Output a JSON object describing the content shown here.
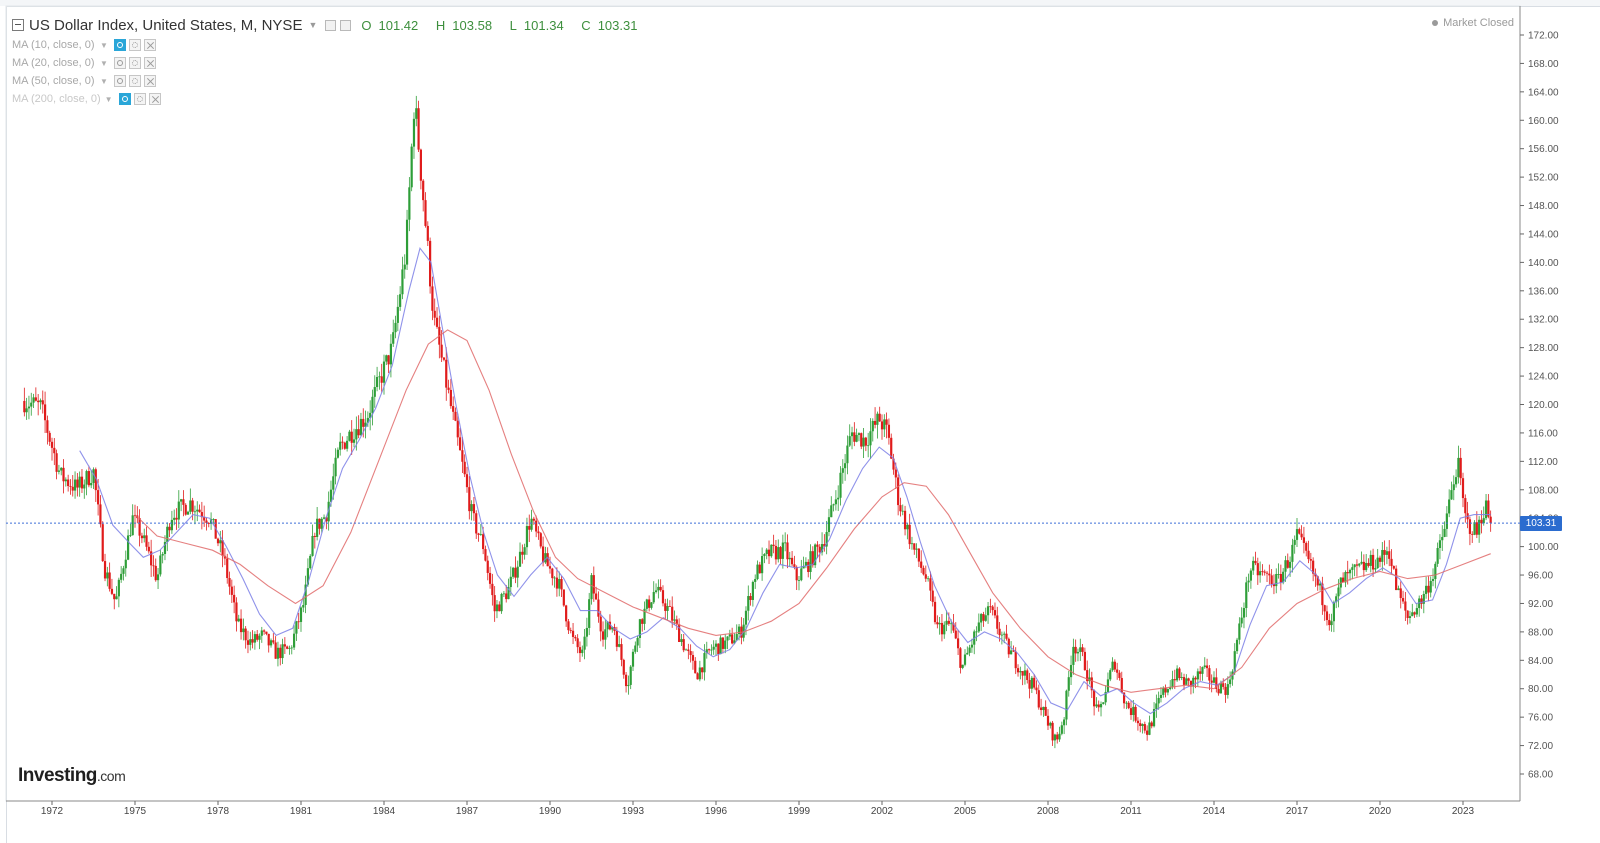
{
  "header": {
    "title": "US Dollar Index, United States, M, NYSE",
    "ohlc": {
      "open_label": "O",
      "open": "101.42",
      "high_label": "H",
      "high": "103.58",
      "low_label": "L",
      "low": "101.34",
      "close_label": "C",
      "close": "103.31"
    },
    "status": "Market Closed"
  },
  "indicators": [
    {
      "label": "MA (10, close, 0)",
      "visible": true
    },
    {
      "label": "MA (20, close, 0)",
      "visible": false
    },
    {
      "label": "MA (50, close, 0)",
      "visible": false
    },
    {
      "label": "MA (200, close, 0)",
      "visible": true
    }
  ],
  "brand": {
    "name": "Investing",
    "suffix": ".com"
  },
  "last_price": "103.31",
  "colors": {
    "up": "#2e9e38",
    "down": "#e01b1b",
    "ma_fast": "#7b7fe6",
    "ma_slow": "#e06a6a",
    "price_line": "#3f6fd8",
    "price_tag": "#2b6ccf"
  },
  "chart_data": {
    "type": "candlestick",
    "interval": "M",
    "y_ticks": [
      "172.00",
      "168.00",
      "164.00",
      "160.00",
      "156.00",
      "152.00",
      "148.00",
      "144.00",
      "140.00",
      "136.00",
      "132.00",
      "128.00",
      "124.00",
      "120.00",
      "116.00",
      "112.00",
      "108.00",
      "104.00",
      "100.00",
      "96.00",
      "92.00",
      "88.00",
      "84.00",
      "80.00",
      "76.00",
      "72.00",
      "68.00"
    ],
    "x_ticks": [
      "1972",
      "1975",
      "1978",
      "1981",
      "1984",
      "1987",
      "1990",
      "1993",
      "1996",
      "1999",
      "2002",
      "2005",
      "2008",
      "2011",
      "2014",
      "2017",
      "2020",
      "2023"
    ],
    "ylim": [
      66,
      174
    ],
    "xlim": [
      1970.6,
      2025.6
    ],
    "last_price": 103.31,
    "price_path": [
      [
        1971.0,
        120.5
      ],
      [
        1971.6,
        119.6
      ],
      [
        1972.3,
        110.0
      ],
      [
        1972.9,
        108.2
      ],
      [
        1973.5,
        110.5
      ],
      [
        1973.9,
        97.0
      ],
      [
        1974.3,
        92.0
      ],
      [
        1974.9,
        104.0
      ],
      [
        1975.2,
        102.0
      ],
      [
        1975.8,
        95.5
      ],
      [
        1976.3,
        104.5
      ],
      [
        1977.0,
        106.2
      ],
      [
        1977.7,
        104.0
      ],
      [
        1978.2,
        98.5
      ],
      [
        1978.7,
        89.0
      ],
      [
        1979.2,
        86.5
      ],
      [
        1979.6,
        87.5
      ],
      [
        1980.1,
        85.0
      ],
      [
        1980.6,
        85.5
      ],
      [
        1981.1,
        92.0
      ],
      [
        1981.5,
        102.5
      ],
      [
        1981.9,
        104.5
      ],
      [
        1982.4,
        114.0
      ],
      [
        1982.8,
        116.0
      ],
      [
        1983.4,
        118.5
      ],
      [
        1983.9,
        124.0
      ],
      [
        1984.3,
        128.0
      ],
      [
        1984.8,
        142.0
      ],
      [
        1985.1,
        163.0
      ],
      [
        1985.4,
        150.0
      ],
      [
        1985.8,
        132.0
      ],
      [
        1986.3,
        122.0
      ],
      [
        1986.8,
        112.0
      ],
      [
        1987.2,
        104.0
      ],
      [
        1987.6,
        100.0
      ],
      [
        1988.0,
        91.0
      ],
      [
        1988.5,
        94.0
      ],
      [
        1988.9,
        98.5
      ],
      [
        1989.3,
        104.0
      ],
      [
        1989.8,
        98.0
      ],
      [
        1990.3,
        95.0
      ],
      [
        1990.8,
        87.0
      ],
      [
        1991.2,
        84.5
      ],
      [
        1991.5,
        95.0
      ],
      [
        1991.9,
        88.0
      ],
      [
        1992.3,
        89.0
      ],
      [
        1992.8,
        80.5
      ],
      [
        1993.2,
        89.0
      ],
      [
        1993.8,
        94.0
      ],
      [
        1994.3,
        91.0
      ],
      [
        1994.8,
        86.5
      ],
      [
        1995.3,
        82.0
      ],
      [
        1995.8,
        85.5
      ],
      [
        1996.4,
        86.5
      ],
      [
        1996.9,
        88.0
      ],
      [
        1997.4,
        96.0
      ],
      [
        1997.9,
        99.0
      ],
      [
        1998.5,
        99.5
      ],
      [
        1998.9,
        95.5
      ],
      [
        1999.4,
        98.0
      ],
      [
        1999.9,
        101.0
      ],
      [
        2000.4,
        108.0
      ],
      [
        2000.9,
        116.0
      ],
      [
        2001.4,
        115.0
      ],
      [
        2001.9,
        118.0
      ],
      [
        2002.2,
        116.0
      ],
      [
        2002.6,
        106.5
      ],
      [
        2003.1,
        100.0
      ],
      [
        2003.6,
        95.5
      ],
      [
        2004.0,
        88.5
      ],
      [
        2004.5,
        89.0
      ],
      [
        2004.9,
        83.0
      ],
      [
        2005.5,
        89.0
      ],
      [
        2005.9,
        91.0
      ],
      [
        2006.5,
        86.0
      ],
      [
        2006.9,
        83.5
      ],
      [
        2007.5,
        80.0
      ],
      [
        2007.9,
        76.0
      ],
      [
        2008.3,
        72.5
      ],
      [
        2008.6,
        76.5
      ],
      [
        2008.9,
        86.5
      ],
      [
        2009.3,
        84.0
      ],
      [
        2009.8,
        76.0
      ],
      [
        2010.4,
        84.0
      ],
      [
        2010.8,
        78.0
      ],
      [
        2011.3,
        75.5
      ],
      [
        2011.6,
        74.0
      ],
      [
        2012.1,
        79.0
      ],
      [
        2012.6,
        82.0
      ],
      [
        2013.1,
        80.5
      ],
      [
        2013.6,
        82.5
      ],
      [
        2014.1,
        80.5
      ],
      [
        2014.5,
        80.0
      ],
      [
        2014.9,
        88.0
      ],
      [
        2015.3,
        97.0
      ],
      [
        2015.8,
        96.0
      ],
      [
        2016.3,
        95.0
      ],
      [
        2016.8,
        99.0
      ],
      [
        2017.0,
        101.5
      ],
      [
        2017.4,
        98.0
      ],
      [
        2017.9,
        93.0
      ],
      [
        2018.2,
        89.5
      ],
      [
        2018.6,
        95.0
      ],
      [
        2019.1,
        96.5
      ],
      [
        2019.6,
        97.5
      ],
      [
        2020.1,
        98.5
      ],
      [
        2020.3,
        100.0
      ],
      [
        2020.6,
        94.0
      ],
      [
        2021.0,
        90.0
      ],
      [
        2021.5,
        92.5
      ],
      [
        2021.9,
        96.0
      ],
      [
        2022.3,
        102.0
      ],
      [
        2022.8,
        112.0
      ],
      [
        2023.1,
        103.5
      ],
      [
        2023.5,
        102.0
      ],
      [
        2023.8,
        106.0
      ],
      [
        2024.0,
        103.31
      ]
    ],
    "series": [
      {
        "name": "MA (10, close, 0)",
        "color": "#7b7fe6",
        "values": [
          [
            1973.0,
            113.5
          ],
          [
            1973.6,
            109.5
          ],
          [
            1974.2,
            103.0
          ],
          [
            1974.8,
            100.5
          ],
          [
            1975.3,
            98.5
          ],
          [
            1975.9,
            99.5
          ],
          [
            1976.5,
            102.0
          ],
          [
            1977.1,
            104.5
          ],
          [
            1977.7,
            104.0
          ],
          [
            1978.3,
            100.0
          ],
          [
            1978.9,
            95.5
          ],
          [
            1979.5,
            90.5
          ],
          [
            1980.1,
            87.5
          ],
          [
            1980.7,
            88.5
          ],
          [
            1981.3,
            95.5
          ],
          [
            1981.9,
            104.0
          ],
          [
            1982.5,
            111.0
          ],
          [
            1983.1,
            115.0
          ],
          [
            1983.7,
            119.5
          ],
          [
            1984.3,
            125.5
          ],
          [
            1984.9,
            136.0
          ],
          [
            1985.3,
            142.0
          ],
          [
            1985.7,
            140.0
          ],
          [
            1986.1,
            131.0
          ],
          [
            1986.6,
            120.0
          ],
          [
            1987.1,
            110.0
          ],
          [
            1987.6,
            102.0
          ],
          [
            1988.1,
            96.0
          ],
          [
            1988.7,
            93.0
          ],
          [
            1989.3,
            96.0
          ],
          [
            1989.9,
            98.5
          ],
          [
            1990.5,
            95.5
          ],
          [
            1991.1,
            91.0
          ],
          [
            1991.7,
            91.0
          ],
          [
            1992.3,
            88.5
          ],
          [
            1992.9,
            87.0
          ],
          [
            1993.5,
            88.0
          ],
          [
            1994.1,
            90.0
          ],
          [
            1994.7,
            88.5
          ],
          [
            1995.3,
            86.0
          ],
          [
            1995.9,
            84.5
          ],
          [
            1996.5,
            85.5
          ],
          [
            1997.1,
            88.5
          ],
          [
            1997.7,
            93.5
          ],
          [
            1998.3,
            97.5
          ],
          [
            1998.9,
            97.0
          ],
          [
            1999.5,
            97.5
          ],
          [
            2000.1,
            101.0
          ],
          [
            2000.7,
            106.5
          ],
          [
            2001.3,
            111.0
          ],
          [
            2001.9,
            114.0
          ],
          [
            2002.4,
            112.5
          ],
          [
            2002.9,
            107.0
          ],
          [
            2003.4,
            100.5
          ],
          [
            2003.9,
            94.5
          ],
          [
            2004.5,
            89.5
          ],
          [
            2005.1,
            86.5
          ],
          [
            2005.7,
            88.0
          ],
          [
            2006.3,
            87.0
          ],
          [
            2006.9,
            85.0
          ],
          [
            2007.5,
            82.0
          ],
          [
            2008.1,
            78.0
          ],
          [
            2008.7,
            77.0
          ],
          [
            2009.3,
            81.0
          ],
          [
            2009.9,
            79.0
          ],
          [
            2010.5,
            80.0
          ],
          [
            2011.1,
            78.0
          ],
          [
            2011.7,
            76.5
          ],
          [
            2012.3,
            78.0
          ],
          [
            2012.9,
            80.0
          ],
          [
            2013.5,
            81.0
          ],
          [
            2014.1,
            80.5
          ],
          [
            2014.7,
            82.0
          ],
          [
            2015.3,
            89.0
          ],
          [
            2015.9,
            94.5
          ],
          [
            2016.5,
            95.0
          ],
          [
            2017.1,
            98.0
          ],
          [
            2017.7,
            96.0
          ],
          [
            2018.3,
            92.0
          ],
          [
            2018.9,
            93.5
          ],
          [
            2019.5,
            95.5
          ],
          [
            2020.1,
            97.0
          ],
          [
            2020.7,
            95.5
          ],
          [
            2021.3,
            92.0
          ],
          [
            2021.9,
            92.5
          ],
          [
            2022.4,
            97.5
          ],
          [
            2022.9,
            104.0
          ],
          [
            2023.4,
            104.5
          ],
          [
            2024.0,
            104.5
          ]
        ]
      },
      {
        "name": "MA (200, close, 0)",
        "color": "#e06a6a",
        "values": [
          [
            1975.0,
            104.5
          ],
          [
            1975.8,
            101.5
          ],
          [
            1976.8,
            100.5
          ],
          [
            1977.8,
            99.5
          ],
          [
            1978.8,
            97.5
          ],
          [
            1979.8,
            94.5
          ],
          [
            1980.8,
            92.0
          ],
          [
            1981.8,
            94.5
          ],
          [
            1982.8,
            102.0
          ],
          [
            1983.8,
            112.0
          ],
          [
            1984.8,
            122.0
          ],
          [
            1985.6,
            128.5
          ],
          [
            1986.3,
            130.5
          ],
          [
            1987.0,
            129.0
          ],
          [
            1987.8,
            122.0
          ],
          [
            1988.6,
            113.0
          ],
          [
            1989.4,
            105.0
          ],
          [
            1990.2,
            98.5
          ],
          [
            1991.0,
            95.5
          ],
          [
            1992.0,
            93.5
          ],
          [
            1993.0,
            91.5
          ],
          [
            1994.0,
            90.0
          ],
          [
            1995.0,
            88.5
          ],
          [
            1996.0,
            87.5
          ],
          [
            1997.0,
            88.0
          ],
          [
            1998.0,
            89.5
          ],
          [
            1999.0,
            92.0
          ],
          [
            2000.0,
            97.0
          ],
          [
            2001.0,
            102.5
          ],
          [
            2002.0,
            107.0
          ],
          [
            2002.8,
            109.0
          ],
          [
            2003.6,
            108.5
          ],
          [
            2004.4,
            104.5
          ],
          [
            2005.2,
            99.0
          ],
          [
            2006.0,
            93.5
          ],
          [
            2007.0,
            88.5
          ],
          [
            2008.0,
            84.5
          ],
          [
            2009.0,
            82.0
          ],
          [
            2010.0,
            80.5
          ],
          [
            2011.0,
            79.5
          ],
          [
            2012.0,
            80.0
          ],
          [
            2013.0,
            80.5
          ],
          [
            2014.0,
            80.0
          ],
          [
            2015.0,
            83.0
          ],
          [
            2016.0,
            88.5
          ],
          [
            2017.0,
            92.0
          ],
          [
            2018.0,
            94.0
          ],
          [
            2019.0,
            95.5
          ],
          [
            2020.0,
            96.5
          ],
          [
            2021.0,
            95.5
          ],
          [
            2022.0,
            96.0
          ],
          [
            2023.0,
            97.5
          ],
          [
            2024.0,
            99.0
          ]
        ]
      }
    ]
  }
}
